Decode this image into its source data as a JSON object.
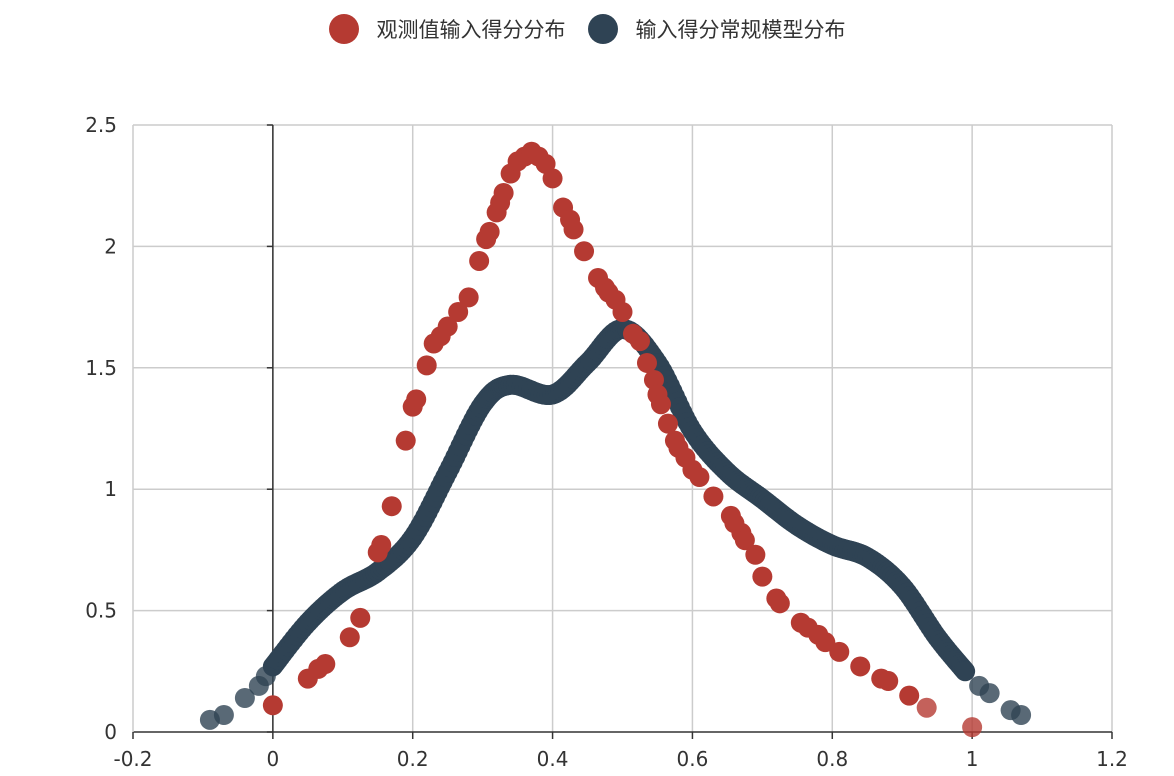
{
  "colors": {
    "observed": "#b53a32",
    "model": "#2f4354",
    "grid": "#cccccc",
    "axis": "#333333"
  },
  "legend": {
    "observed_label": "观测值输入得分分布",
    "model_label": "输入得分常规模型分布"
  },
  "chart_data": {
    "type": "scatter",
    "title": "",
    "xlabel": "",
    "ylabel": "",
    "xlim": [
      -0.2,
      1.2
    ],
    "ylim": [
      0,
      2.5
    ],
    "x_ticks": [
      "-0.2",
      "0",
      "0.2",
      "0.4",
      "0.6",
      "0.8",
      "1",
      "1.2"
    ],
    "y_ticks": [
      "0",
      "0.5",
      "1",
      "1.5",
      "2",
      "2.5"
    ],
    "grid": true,
    "legend_position": "top-center",
    "series": [
      {
        "name": "观测值输入得分分布",
        "color": "#b53a32",
        "points": [
          [
            0.0,
            0.11
          ],
          [
            0.05,
            0.22
          ],
          [
            0.065,
            0.26
          ],
          [
            0.075,
            0.28
          ],
          [
            0.11,
            0.39
          ],
          [
            0.125,
            0.47
          ],
          [
            0.15,
            0.74
          ],
          [
            0.155,
            0.77
          ],
          [
            0.17,
            0.93
          ],
          [
            0.19,
            1.2
          ],
          [
            0.2,
            1.34
          ],
          [
            0.205,
            1.37
          ],
          [
            0.22,
            1.51
          ],
          [
            0.23,
            1.6
          ],
          [
            0.24,
            1.63
          ],
          [
            0.25,
            1.67
          ],
          [
            0.265,
            1.73
          ],
          [
            0.28,
            1.79
          ],
          [
            0.295,
            1.94
          ],
          [
            0.305,
            2.03
          ],
          [
            0.31,
            2.06
          ],
          [
            0.32,
            2.14
          ],
          [
            0.325,
            2.18
          ],
          [
            0.33,
            2.22
          ],
          [
            0.34,
            2.3
          ],
          [
            0.35,
            2.35
          ],
          [
            0.36,
            2.37
          ],
          [
            0.37,
            2.39
          ],
          [
            0.38,
            2.37
          ],
          [
            0.39,
            2.34
          ],
          [
            0.4,
            2.28
          ],
          [
            0.415,
            2.16
          ],
          [
            0.425,
            2.11
          ],
          [
            0.43,
            2.07
          ],
          [
            0.445,
            1.98
          ],
          [
            0.465,
            1.87
          ],
          [
            0.475,
            1.83
          ],
          [
            0.48,
            1.81
          ],
          [
            0.49,
            1.78
          ],
          [
            0.5,
            1.73
          ],
          [
            0.515,
            1.64
          ],
          [
            0.525,
            1.61
          ],
          [
            0.535,
            1.52
          ],
          [
            0.545,
            1.45
          ],
          [
            0.55,
            1.39
          ],
          [
            0.555,
            1.35
          ],
          [
            0.565,
            1.27
          ],
          [
            0.575,
            1.2
          ],
          [
            0.58,
            1.17
          ],
          [
            0.59,
            1.13
          ],
          [
            0.6,
            1.08
          ],
          [
            0.61,
            1.05
          ],
          [
            0.63,
            0.97
          ],
          [
            0.655,
            0.89
          ],
          [
            0.66,
            0.86
          ],
          [
            0.67,
            0.82
          ],
          [
            0.675,
            0.79
          ],
          [
            0.69,
            0.73
          ],
          [
            0.7,
            0.64
          ],
          [
            0.72,
            0.55
          ],
          [
            0.725,
            0.53
          ],
          [
            0.755,
            0.45
          ],
          [
            0.765,
            0.43
          ],
          [
            0.78,
            0.4
          ],
          [
            0.79,
            0.37
          ],
          [
            0.81,
            0.33
          ],
          [
            0.84,
            0.27
          ],
          [
            0.87,
            0.22
          ],
          [
            0.88,
            0.21
          ],
          [
            0.91,
            0.15
          ],
          [
            0.935,
            0.1
          ],
          [
            1.0,
            0.02
          ]
        ]
      },
      {
        "name": "输入得分常规模型分布",
        "color": "#2f4354",
        "curve": [
          [
            0.0,
            0.27
          ],
          [
            0.05,
            0.45
          ],
          [
            0.1,
            0.58
          ],
          [
            0.15,
            0.66
          ],
          [
            0.2,
            0.8
          ],
          [
            0.25,
            1.07
          ],
          [
            0.3,
            1.35
          ],
          [
            0.34,
            1.43
          ],
          [
            0.4,
            1.39
          ],
          [
            0.45,
            1.52
          ],
          [
            0.5,
            1.66
          ],
          [
            0.55,
            1.52
          ],
          [
            0.6,
            1.24
          ],
          [
            0.65,
            1.07
          ],
          [
            0.7,
            0.96
          ],
          [
            0.75,
            0.85
          ],
          [
            0.8,
            0.77
          ],
          [
            0.85,
            0.72
          ],
          [
            0.9,
            0.6
          ],
          [
            0.95,
            0.39
          ],
          [
            0.99,
            0.25
          ]
        ],
        "tail_points": [
          [
            -0.09,
            0.05
          ],
          [
            -0.07,
            0.07
          ],
          [
            -0.04,
            0.14
          ],
          [
            -0.02,
            0.19
          ],
          [
            -0.01,
            0.23
          ],
          [
            1.01,
            0.19
          ],
          [
            1.025,
            0.16
          ],
          [
            1.055,
            0.09
          ],
          [
            1.07,
            0.07
          ]
        ]
      }
    ]
  }
}
